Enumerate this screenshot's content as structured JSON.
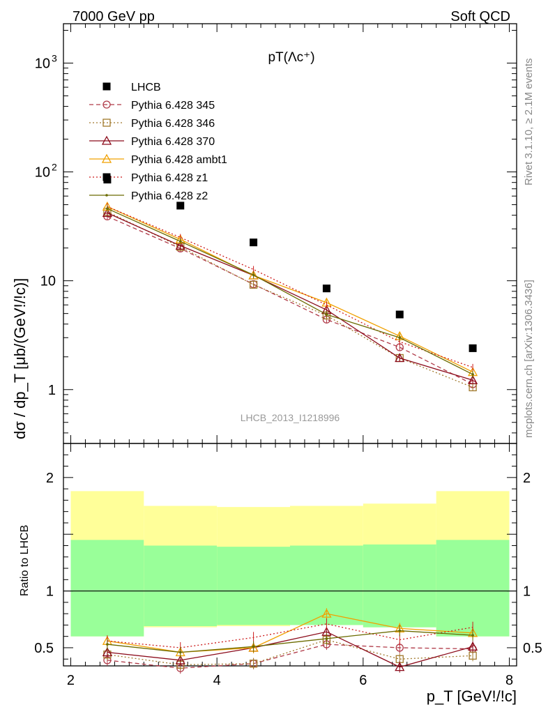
{
  "header": {
    "left": "7000 GeV pp",
    "right": "Soft QCD"
  },
  "side_text": {
    "rivet": "Rivet 3.1.10, ≥ 2.1M events",
    "mcplots": "mcplots.cern.ch [arXiv:1306.3436]"
  },
  "chart_data": {
    "type": "line",
    "title": "pT(Λc⁺)",
    "watermark": "LHCB_2013_I1218996",
    "xlabel": "p_T [GeV!/!c]",
    "ylabel": "dσ / dp_T [μb/(GeV!/!c)]",
    "ratio_ylabel": "Ratio to LHCB",
    "xlim": [
      1.9,
      8.1
    ],
    "ylim": [
      0.32,
      2300
    ],
    "yscale": "log",
    "ratio_ylim": [
      0.34,
      2.3
    ],
    "x_ticks": [
      "2",
      "4",
      "6",
      "8"
    ],
    "y_ticks": [
      {
        "value": 1,
        "label": "1"
      },
      {
        "value": 10,
        "label": "10"
      },
      {
        "value": 100,
        "label": "10",
        "sup": "2"
      },
      {
        "value": 1000,
        "label": "10",
        "sup": "3"
      }
    ],
    "ratio_ticks": [
      {
        "value": 0.5,
        "label": "0.5"
      },
      {
        "value": 1,
        "label": "1"
      },
      {
        "value": 2,
        "label": "2"
      }
    ],
    "x": [
      2.5,
      3.5,
      4.5,
      5.5,
      6.5,
      7.5
    ],
    "bin_edges": [
      2,
      3,
      4,
      5,
      6,
      7,
      8
    ],
    "reference": {
      "name": "LHCB",
      "values": [
        85,
        49,
        22.5,
        8.5,
        4.9,
        2.4
      ],
      "band_yellow": [
        [
          0.6,
          1.88
        ],
        [
          0.68,
          1.75
        ],
        [
          0.69,
          1.74
        ],
        [
          0.7,
          1.75
        ],
        [
          0.68,
          1.77
        ],
        [
          0.6,
          1.88
        ]
      ],
      "band_green": [
        [
          0.6,
          1.45
        ],
        [
          0.69,
          1.4
        ],
        [
          0.7,
          1.39
        ],
        [
          0.7,
          1.4
        ],
        [
          0.68,
          1.41
        ],
        [
          0.6,
          1.45
        ]
      ]
    },
    "series": [
      {
        "name": "Pythia 6.428 345",
        "color": "#b03a48",
        "marker": "circle",
        "dash": "6,4",
        "values": [
          39,
          19.8,
          9.3,
          4.4,
          2.45,
          1.12
        ],
        "ratio": [
          0.39,
          0.32,
          0.36,
          0.53,
          0.5,
          0.49
        ]
      },
      {
        "name": "Pythia 6.428 346",
        "color": "#a0782a",
        "marker": "square",
        "dash": "2,3",
        "values": [
          43,
          20.5,
          9.2,
          4.8,
          1.95,
          1.05
        ],
        "ratio": [
          0.44,
          0.35,
          0.36,
          0.57,
          0.4,
          0.43
        ]
      },
      {
        "name": "Pythia 6.428 370",
        "color": "#8b0a1a",
        "marker": "triangle",
        "dash": "",
        "values": [
          42,
          21,
          11.2,
          5.4,
          1.95,
          1.22
        ],
        "ratio": [
          0.46,
          0.39,
          0.5,
          0.64,
          0.33,
          0.51
        ]
      },
      {
        "name": "Pythia 6.428 ambt1",
        "color": "#f0a000",
        "marker": "triangle",
        "dash": "",
        "values": [
          48,
          24,
          11.2,
          6.3,
          3.1,
          1.45
        ],
        "ratio": [
          0.56,
          0.46,
          0.5,
          0.8,
          0.67,
          0.63
        ]
      },
      {
        "name": "Pythia 6.428 z1",
        "color": "#cc1a1a",
        "marker": "none",
        "dash": "2,3",
        "values": [
          48,
          25,
          12.7,
          6.0,
          2.75,
          1.6
        ],
        "ratio": [
          0.56,
          0.5,
          0.59,
          0.71,
          0.57,
          0.68
        ]
      },
      {
        "name": "Pythia 6.428 z2",
        "color": "#6b6b00",
        "marker": "dot",
        "dash": "",
        "values": [
          46,
          23,
          11.3,
          4.9,
          3.0,
          1.38
        ],
        "ratio": [
          0.53,
          0.46,
          0.51,
          0.58,
          0.65,
          0.61
        ]
      }
    ]
  }
}
